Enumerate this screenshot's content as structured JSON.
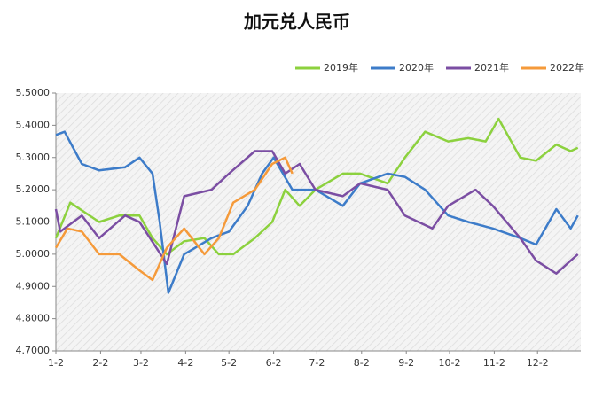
{
  "chart_data": {
    "type": "line",
    "title": "加元兑人民币",
    "xlim": [
      2,
      366
    ],
    "xticks": [
      {
        "value": 2,
        "label": "1-2"
      },
      {
        "value": 33,
        "label": "2-2"
      },
      {
        "value": 61,
        "label": "3-2"
      },
      {
        "value": 92,
        "label": "4-2"
      },
      {
        "value": 122,
        "label": "5-2"
      },
      {
        "value": 153,
        "label": "6-2"
      },
      {
        "value": 183,
        "label": "7-2"
      },
      {
        "value": 214,
        "label": "8-2"
      },
      {
        "value": 245,
        "label": "9-2"
      },
      {
        "value": 275,
        "label": "10-2"
      },
      {
        "value": 306,
        "label": "11-2"
      },
      {
        "value": 336,
        "label": "12-2"
      }
    ],
    "ylim": [
      4.7,
      5.5
    ],
    "yticks": [
      {
        "value": 4.7,
        "label": "4.7000"
      },
      {
        "value": 4.8,
        "label": "4.8000"
      },
      {
        "value": 4.9,
        "label": "4.9000"
      },
      {
        "value": 5.0,
        "label": "5.0000"
      },
      {
        "value": 5.1,
        "label": "5.1000"
      },
      {
        "value": 5.2,
        "label": "5.2000"
      },
      {
        "value": 5.3,
        "label": "5.3000"
      },
      {
        "value": 5.4,
        "label": "5.4000"
      },
      {
        "value": 5.5,
        "label": "5.5000"
      }
    ],
    "legend": "top-right",
    "series": [
      {
        "name": "2019年",
        "color": "#8cd13e",
        "x": [
          2,
          12,
          32,
          46,
          60,
          69,
          79,
          91,
          105,
          115,
          125,
          140,
          152,
          161,
          171,
          182,
          201,
          213,
          232,
          244,
          258,
          274,
          288,
          300,
          309,
          324,
          335,
          349,
          359,
          364
        ],
        "values": [
          5.05,
          5.16,
          5.1,
          5.12,
          5.12,
          5.05,
          5.0,
          5.04,
          5.05,
          5.0,
          5.0,
          5.05,
          5.1,
          5.2,
          5.15,
          5.2,
          5.25,
          5.25,
          5.22,
          5.3,
          5.38,
          5.35,
          5.36,
          5.35,
          5.42,
          5.3,
          5.29,
          5.34,
          5.32,
          5.33
        ]
      },
      {
        "name": "2020年",
        "color": "#3d7cc9",
        "x": [
          2,
          8,
          20,
          32,
          50,
          60,
          69,
          74,
          80,
          91,
          110,
          122,
          135,
          145,
          153,
          166,
          182,
          201,
          213,
          232,
          244,
          258,
          274,
          288,
          305,
          324,
          335,
          349,
          359,
          364
        ],
        "values": [
          5.37,
          5.38,
          5.28,
          5.26,
          5.27,
          5.3,
          5.25,
          5.1,
          4.88,
          5.0,
          5.05,
          5.07,
          5.15,
          5.25,
          5.3,
          5.2,
          5.2,
          5.15,
          5.22,
          5.25,
          5.24,
          5.2,
          5.12,
          5.1,
          5.08,
          5.05,
          5.03,
          5.14,
          5.08,
          5.12
        ]
      },
      {
        "name": "2021年",
        "color": "#7b4ea3",
        "x": [
          2,
          5,
          20,
          32,
          50,
          60,
          79,
          91,
          110,
          122,
          140,
          152,
          161,
          171,
          182,
          201,
          213,
          232,
          244,
          263,
          274,
          293,
          305,
          324,
          335,
          349,
          359,
          364
        ],
        "values": [
          5.14,
          5.07,
          5.12,
          5.05,
          5.12,
          5.1,
          4.97,
          5.18,
          5.2,
          5.25,
          5.32,
          5.32,
          5.25,
          5.28,
          5.2,
          5.18,
          5.22,
          5.2,
          5.12,
          5.08,
          5.15,
          5.2,
          5.15,
          5.05,
          4.98,
          4.94,
          4.98,
          5.0
        ]
      },
      {
        "name": "2022年",
        "color": "#f59a3a",
        "x": [
          2,
          10,
          20,
          32,
          46,
          60,
          69,
          79,
          91,
          105,
          115,
          125,
          140,
          152,
          161,
          166
        ],
        "values": [
          5.02,
          5.08,
          5.07,
          5.0,
          5.0,
          4.95,
          4.92,
          5.02,
          5.08,
          5.0,
          5.05,
          5.16,
          5.2,
          5.28,
          5.3,
          5.25
        ]
      }
    ]
  }
}
